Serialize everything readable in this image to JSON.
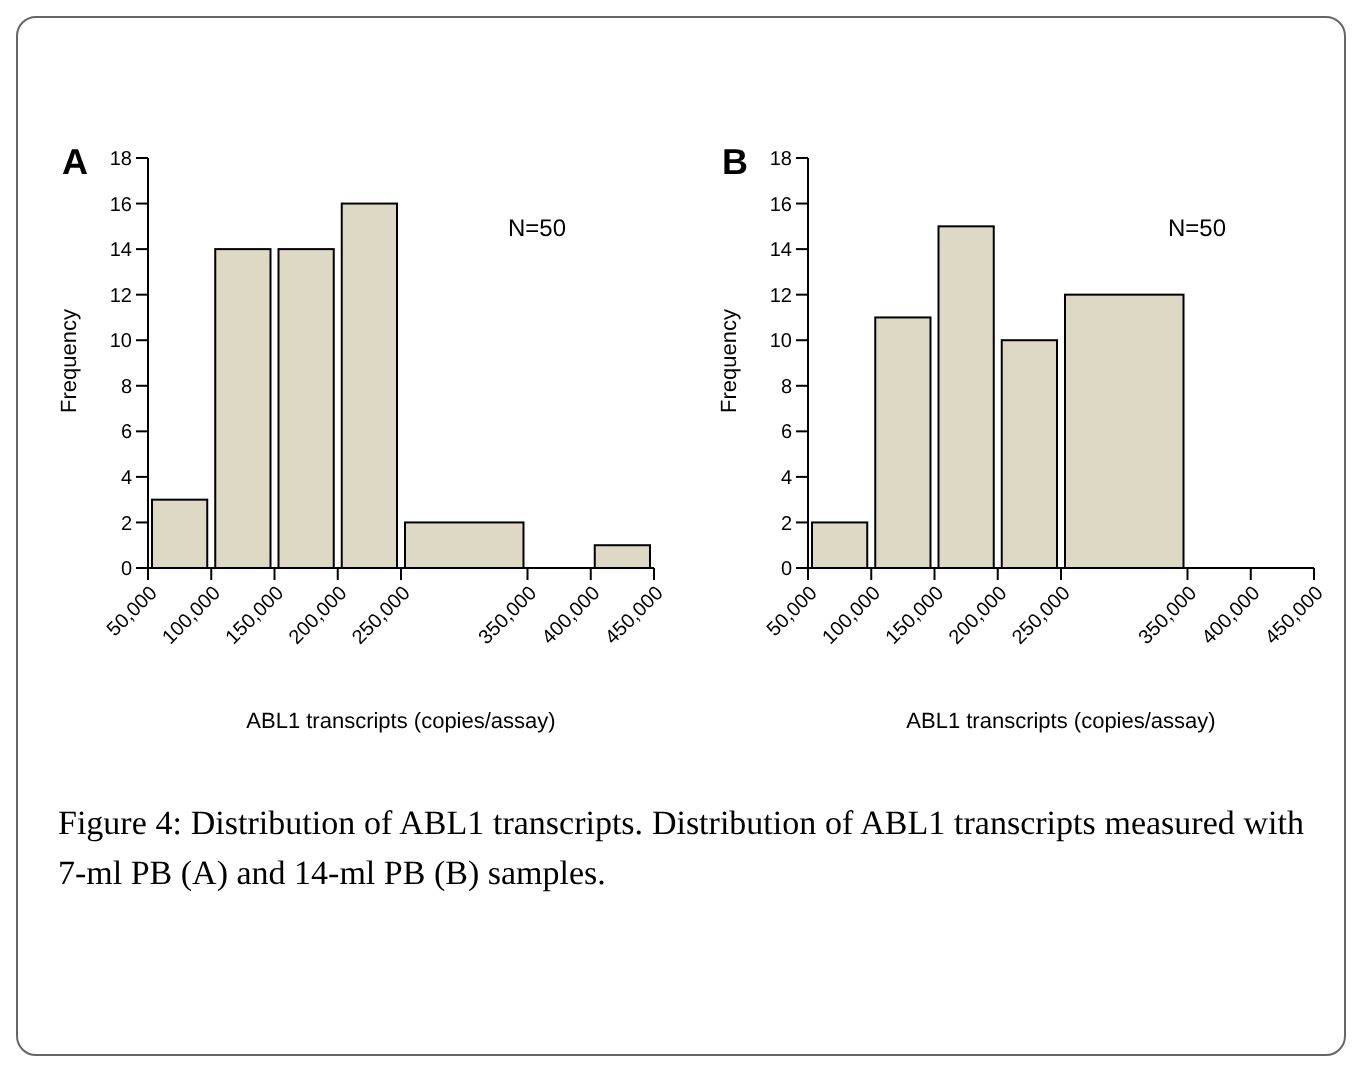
{
  "chart_data": [
    {
      "type": "histogram",
      "title": "A",
      "xlabel": "ABL1 transcripts (copies/assay)",
      "ylabel": "Frequency",
      "bins": [
        50000,
        100000,
        150000,
        200000,
        250000,
        350000,
        400000,
        450000
      ],
      "values": [
        3,
        14,
        14,
        16,
        2,
        0,
        1
      ],
      "color": "#ddd9c4",
      "xlim": [
        50000,
        450000
      ],
      "xticks": [
        {
          "value": 50000,
          "label": "50,000"
        },
        {
          "value": 100000,
          "label": "100,000"
        },
        {
          "value": 150000,
          "label": "150,000"
        },
        {
          "value": 200000,
          "label": "200,000"
        },
        {
          "value": 250000,
          "label": "250,000"
        },
        {
          "value": 350000,
          "label": "350,000"
        },
        {
          "value": 400000,
          "label": "400,000"
        },
        {
          "value": 450000,
          "label": "450,000"
        }
      ],
      "ylim": [
        0,
        18
      ],
      "yticks": [
        0,
        2,
        4,
        6,
        8,
        10,
        12,
        14,
        16,
        18
      ],
      "annotations": [
        "N=50",
        "Figure 4: Distribution of ABL1 transcripts. Distribution of ABL1 transcripts measured with 7-ml PB (A) and 14-ml PB (B) samples."
      ]
    },
    {
      "type": "histogram",
      "title": "B",
      "xlabel": "ABL1 transcripts (copies/assay)",
      "ylabel": "Frequency",
      "bins": [
        50000,
        100000,
        150000,
        200000,
        250000,
        350000
      ],
      "values": [
        2,
        11,
        15,
        10,
        12
      ],
      "color": "#ddd9c4",
      "xlim": [
        50000,
        450000
      ],
      "xticks": [
        {
          "value": 50000,
          "label": "50,000"
        },
        {
          "value": 100000,
          "label": "100,000"
        },
        {
          "value": 150000,
          "label": "150,000"
        },
        {
          "value": 200000,
          "label": "200,000"
        },
        {
          "value": 250000,
          "label": "250,000"
        },
        {
          "value": 350000,
          "label": "350,000"
        },
        {
          "value": 400000,
          "label": "400,000"
        },
        {
          "value": 450000,
          "label": "450,000"
        }
      ],
      "ylim": [
        0,
        18
      ],
      "yticks": [
        0,
        2,
        4,
        6,
        8,
        10,
        12,
        14,
        16,
        18
      ],
      "annotations": [
        "N=50"
      ]
    }
  ]
}
